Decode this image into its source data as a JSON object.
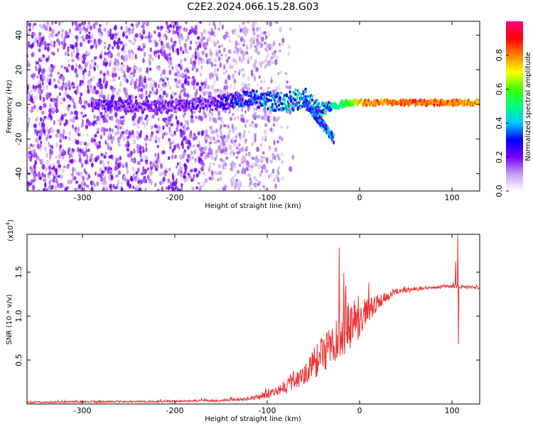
{
  "title": "C2E2.2024.066.15.28.G03",
  "chart_data": [
    {
      "type": "heatmap",
      "xlabel": "Height of straight line (km)",
      "ylabel": "Frequency (Hz)",
      "xlim": [
        -360,
        130
      ],
      "ylim": [
        -50,
        48
      ],
      "xticks": [
        -300,
        -200,
        -100,
        0,
        100
      ],
      "xtick_labels": [
        "-300",
        "-200",
        "-100",
        "0",
        "100"
      ],
      "yticks": [
        -40,
        -20,
        0,
        20,
        40
      ],
      "ytick_labels": [
        "-40",
        "-20",
        "0",
        "20",
        "40"
      ],
      "colorbar": {
        "label": "Normalized spectral amplitude",
        "range": [
          0,
          1
        ],
        "ticks": [
          0.0,
          0.2,
          0.4,
          0.6,
          0.8
        ],
        "tick_labels": [
          "0.0",
          "0.2",
          "0.4",
          "0.6",
          "0.8"
        ],
        "colors": [
          "#ffffff",
          "#c49cf0",
          "#7a00ff",
          "#0000ff",
          "#00c8ff",
          "#00ff80",
          "#40ff00",
          "#ffff00",
          "#ff8000",
          "#ff0000",
          "#ff0080"
        ]
      },
      "noise_region_x": [
        -360,
        -110
      ],
      "central_line": [
        {
          "x": -290,
          "f": 0.0,
          "width": 5,
          "amp": 0.25
        },
        {
          "x": -250,
          "f": -1.0,
          "width": 6,
          "amp": 0.2
        },
        {
          "x": -200,
          "f": -1.0,
          "width": 6,
          "amp": 0.2
        },
        {
          "x": -150,
          "f": 1.0,
          "width": 8,
          "amp": 0.25
        },
        {
          "x": -120,
          "f": 4.0,
          "width": 9,
          "amp": 0.35
        },
        {
          "x": -100,
          "f": 2.0,
          "width": 10,
          "amp": 0.4
        },
        {
          "x": -80,
          "f": 1.0,
          "width": 11,
          "amp": 0.45
        },
        {
          "x": -60,
          "f": 4.0,
          "width": 12,
          "amp": 0.45
        },
        {
          "x": -45,
          "f": -3.0,
          "width": 10,
          "amp": 0.45
        },
        {
          "x": -30,
          "f": -1.0,
          "width": 5,
          "amp": 0.5
        },
        {
          "x": -10,
          "f": 1.0,
          "width": 3,
          "amp": 0.6
        },
        {
          "x": 0,
          "f": 1.0,
          "width": 3,
          "amp": 0.8
        },
        {
          "x": 30,
          "f": 1.0,
          "width": 3,
          "amp": 0.85
        },
        {
          "x": 60,
          "f": 1.0,
          "width": 3,
          "amp": 0.9
        },
        {
          "x": 90,
          "f": 1.0,
          "width": 3,
          "amp": 0.85
        },
        {
          "x": 130,
          "f": 1.0,
          "width": 3,
          "amp": 0.8
        }
      ],
      "descending_branch": [
        {
          "x": -60,
          "f": 2.0
        },
        {
          "x": -45,
          "f": -8.0
        },
        {
          "x": -35,
          "f": -15.0
        },
        {
          "x": -28,
          "f": -20.0
        }
      ]
    },
    {
      "type": "line",
      "xlabel": "Height of straight line (km)",
      "ylabel": "SNR (10 * v/v)",
      "y_scale_label": "(x10",
      "y_scale_exponent": "4",
      "y_scale_close": ")",
      "xlim": [
        -360,
        130
      ],
      "ylim": [
        0,
        1.93
      ],
      "xticks": [
        -300,
        -200,
        -100,
        0,
        100
      ],
      "xtick_labels": [
        "-300",
        "-200",
        "-100",
        "0",
        "100"
      ],
      "yticks": [
        0.5,
        1.0,
        1.5
      ],
      "ytick_labels": [
        "0.5",
        "1.0",
        "1.5"
      ],
      "color": "#ee3333",
      "envelope": [
        {
          "x": -360,
          "y": 0.02,
          "noise": 0.01
        },
        {
          "x": -300,
          "y": 0.025,
          "noise": 0.01
        },
        {
          "x": -200,
          "y": 0.03,
          "noise": 0.012
        },
        {
          "x": -150,
          "y": 0.04,
          "noise": 0.015
        },
        {
          "x": -120,
          "y": 0.06,
          "noise": 0.02
        },
        {
          "x": -100,
          "y": 0.1,
          "noise": 0.04
        },
        {
          "x": -80,
          "y": 0.2,
          "noise": 0.08
        },
        {
          "x": -60,
          "y": 0.35,
          "noise": 0.15
        },
        {
          "x": -45,
          "y": 0.5,
          "noise": 0.2
        },
        {
          "x": -30,
          "y": 0.65,
          "noise": 0.25
        },
        {
          "x": -20,
          "y": 0.8,
          "noise": 0.3
        },
        {
          "x": -5,
          "y": 0.95,
          "noise": 0.25
        },
        {
          "x": 10,
          "y": 1.05,
          "noise": 0.15
        },
        {
          "x": 25,
          "y": 1.2,
          "noise": 0.06
        },
        {
          "x": 40,
          "y": 1.28,
          "noise": 0.03
        },
        {
          "x": 70,
          "y": 1.32,
          "noise": 0.02
        },
        {
          "x": 100,
          "y": 1.34,
          "noise": 0.02
        },
        {
          "x": 130,
          "y": 1.32,
          "noise": 0.02
        }
      ],
      "spikes": [
        {
          "x": -22,
          "y": 1.78
        },
        {
          "x": -15,
          "y": 1.35
        },
        {
          "x": 10,
          "y": 1.38
        },
        {
          "x": 104,
          "y": 1.62
        },
        {
          "x": 106,
          "y": 1.93
        },
        {
          "x": 107,
          "y": 0.68
        }
      ]
    }
  ]
}
